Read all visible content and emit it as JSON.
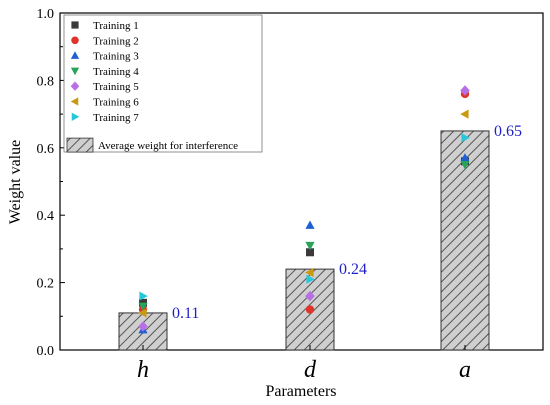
{
  "chart_data": {
    "type": "bar",
    "categories": [
      "h",
      "d",
      "a"
    ],
    "ylabel": "Weight value",
    "xlabel": "Parameters",
    "ylim": [
      0,
      1.0
    ],
    "yticks": [
      "0.0",
      "0.2",
      "0.4",
      "0.6",
      "0.8",
      "1.0"
    ],
    "bar_series": {
      "name": "Average weight for interference",
      "values": [
        0.11,
        0.24,
        0.65
      ],
      "labels": [
        "0.11",
        "0.24",
        "0.65"
      ],
      "label_color": "#1f1fc7"
    },
    "series": [
      {
        "name": "Training 1",
        "marker": "square",
        "color": "#3a3a3a",
        "values": [
          0.14,
          0.29,
          0.56
        ]
      },
      {
        "name": "Training 2",
        "marker": "circle",
        "color": "#e0332b",
        "values": [
          0.12,
          0.12,
          0.76
        ]
      },
      {
        "name": "Training 3",
        "marker": "tri-up",
        "color": "#1f5fd6",
        "values": [
          0.06,
          0.37,
          0.57
        ]
      },
      {
        "name": "Training 4",
        "marker": "tri-down",
        "color": "#2aa35a",
        "values": [
          0.13,
          0.31,
          0.55
        ]
      },
      {
        "name": "Training 5",
        "marker": "diamond",
        "color": "#b76fe6",
        "values": [
          0.07,
          0.16,
          0.77
        ]
      },
      {
        "name": "Training 6",
        "marker": "tri-left",
        "color": "#c99a10",
        "values": [
          0.11,
          0.23,
          0.7
        ]
      },
      {
        "name": "Training 7",
        "marker": "tri-right",
        "color": "#25c7d9",
        "values": [
          0.16,
          0.21,
          0.63
        ]
      }
    ],
    "legend_position": "top-left"
  }
}
